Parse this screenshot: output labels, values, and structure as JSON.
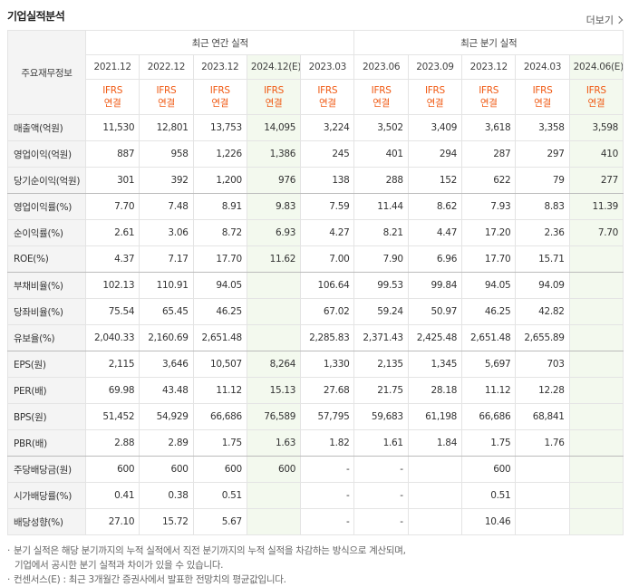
{
  "header": {
    "title": "기업실적분석",
    "more": "더보기"
  },
  "table": {
    "corner": "주요재무정보",
    "groups": [
      "최근 연간 실적",
      "최근 분기 실적"
    ],
    "periods": [
      "2021.12",
      "2022.12",
      "2023.12",
      "2024.12(E)",
      "2023.03",
      "2023.06",
      "2023.09",
      "2023.12",
      "2024.03",
      "2024.06(E)"
    ],
    "estimate_columns": [
      3,
      9
    ],
    "standards": [
      "IFRS\n연결",
      "IFRS\n연결",
      "IFRS\n연결",
      "IFRS\n연결",
      "IFRS\n연결",
      "IFRS\n연결",
      "IFRS\n연결",
      "IFRS\n연결",
      "IFRS\n연결",
      "IFRS\n연결"
    ],
    "group_ends": [
      2,
      5,
      8,
      12
    ],
    "rows": [
      {
        "label": "매출액(억원)",
        "cells": [
          "11,530",
          "12,801",
          "13,753",
          "14,095",
          "3,224",
          "3,502",
          "3,409",
          "3,618",
          "3,358",
          "3,598"
        ]
      },
      {
        "label": "영업이익(억원)",
        "cells": [
          "887",
          "958",
          "1,226",
          "1,386",
          "245",
          "401",
          "294",
          "287",
          "297",
          "410"
        ]
      },
      {
        "label": "당기순이익(억원)",
        "cells": [
          "301",
          "392",
          "1,200",
          "976",
          "138",
          "288",
          "152",
          "622",
          "79",
          "277"
        ]
      },
      {
        "label": "영업이익률(%)",
        "cells": [
          "7.70",
          "7.48",
          "8.91",
          "9.83",
          "7.59",
          "11.44",
          "8.62",
          "7.93",
          "8.83",
          "11.39"
        ]
      },
      {
        "label": "순이익률(%)",
        "cells": [
          "2.61",
          "3.06",
          "8.72",
          "6.93",
          "4.27",
          "8.21",
          "4.47",
          "17.20",
          "2.36",
          "7.70"
        ]
      },
      {
        "label": "ROE(%)",
        "cells": [
          "4.37",
          "7.17",
          "17.70",
          "11.62",
          "7.00",
          "7.90",
          "6.96",
          "17.70",
          "15.71",
          null
        ]
      },
      {
        "label": "부채비율(%)",
        "cells": [
          "102.13",
          "110.91",
          "94.05",
          null,
          "106.64",
          "99.53",
          "99.84",
          "94.05",
          "94.09",
          null
        ]
      },
      {
        "label": "당좌비율(%)",
        "cells": [
          "75.54",
          "65.45",
          "46.25",
          null,
          "67.02",
          "59.24",
          "50.97",
          "46.25",
          "42.82",
          null
        ]
      },
      {
        "label": "유보율(%)",
        "cells": [
          "2,040.33",
          "2,160.69",
          "2,651.48",
          null,
          "2,285.83",
          "2,371.43",
          "2,425.48",
          "2,651.48",
          "2,655.89",
          null
        ]
      },
      {
        "label": "EPS(원)",
        "cells": [
          "2,115",
          "3,646",
          "10,507",
          "8,264",
          "1,330",
          "2,135",
          "1,345",
          "5,697",
          "703",
          null
        ]
      },
      {
        "label": "PER(배)",
        "cells": [
          "69.98",
          "43.48",
          "11.12",
          "15.13",
          "27.68",
          "21.75",
          "28.18",
          "11.12",
          "12.28",
          null
        ]
      },
      {
        "label": "BPS(원)",
        "cells": [
          "51,452",
          "54,929",
          "66,686",
          "76,589",
          "57,795",
          "59,683",
          "61,198",
          "66,686",
          "68,841",
          null
        ]
      },
      {
        "label": "PBR(배)",
        "cells": [
          "2.88",
          "2.89",
          "1.75",
          "1.63",
          "1.82",
          "1.61",
          "1.84",
          "1.75",
          "1.76",
          null
        ]
      },
      {
        "label": "주당배당금(원)",
        "cells": [
          "600",
          "600",
          "600",
          "600",
          "-",
          "-",
          null,
          "600",
          null,
          null
        ]
      },
      {
        "label": "시가배당률(%)",
        "cells": [
          "0.41",
          "0.38",
          "0.51",
          null,
          "-",
          "-",
          null,
          "0.51",
          null,
          null
        ]
      },
      {
        "label": "배당성향(%)",
        "cells": [
          "27.10",
          "15.72",
          "5.67",
          null,
          "-",
          "-",
          null,
          "10.46",
          null,
          null
        ]
      }
    ]
  },
  "notes": [
    "분기 실적은 해당 분기까지의 누적 실적에서 직전 분기까지의 누적 실적을 차감하는 방식으로 계산되며,",
    "기업에서 공시한 분기 실적과 차이가 있을 수 있습니다.",
    "컨센서스(E) : 최근 3개월간 증권사에서 발표한 전망치의 평균값입니다."
  ]
}
